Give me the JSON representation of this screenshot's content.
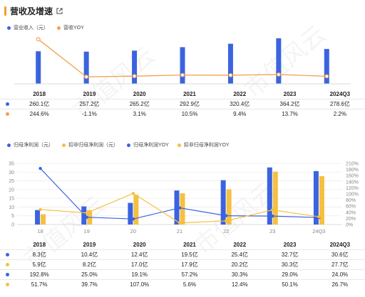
{
  "header": {
    "title": "营收及增速"
  },
  "colors": {
    "blue": "#3b63e0",
    "orange": "#f0a050",
    "yellow": "#f5c040",
    "accent": "#f0a020"
  },
  "watermark": "市值风云",
  "chart_data": [
    {
      "type": "bar",
      "categories": [
        "2018",
        "2019",
        "2020",
        "2021",
        "2022",
        "2023",
        "2024Q3"
      ],
      "series": [
        {
          "name": "营业收入（元）",
          "type": "bar",
          "values": [
            260.1,
            257.2,
            265.2,
            292.9,
            320.4,
            364.2,
            278.6
          ]
        },
        {
          "name": "营收YOY",
          "type": "line",
          "values": [
            244.6,
            -1.1,
            3.1,
            10.5,
            9.4,
            13.7,
            2.2
          ]
        }
      ],
      "table": {
        "header": [
          "2018",
          "2019",
          "2020",
          "2021",
          "2022",
          "2023",
          "2024Q3"
        ],
        "rows": [
          [
            "260.1亿",
            "257.2亿",
            "265.2亿",
            "292.9亿",
            "320.4亿",
            "364.2亿",
            "278.6亿"
          ],
          [
            "244.6%",
            "-1.1%",
            "3.1%",
            "10.5%",
            "9.4%",
            "13.7%",
            "2.2%"
          ]
        ]
      }
    },
    {
      "type": "bar",
      "categories": [
        "18",
        "19",
        "20",
        "21",
        "22",
        "23",
        "24Q3"
      ],
      "y_left": {
        "ticks": [
          "0",
          "5",
          "10",
          "15",
          "20",
          "25",
          "30",
          "35"
        ],
        "range": [
          0,
          35
        ]
      },
      "y_right": {
        "ticks": [
          "0%",
          "20%",
          "40%",
          "60%",
          "80%",
          "100%",
          "120%",
          "140%",
          "160%",
          "180%",
          "210%"
        ],
        "range": [
          0,
          210
        ]
      },
      "series": [
        {
          "name": "归母净利润（元）",
          "type": "bar",
          "values": [
            8.3,
            10.4,
            12.4,
            19.5,
            25.4,
            32.7,
            30.6
          ]
        },
        {
          "name": "扣非归母净利润（元）",
          "type": "bar",
          "values": [
            5.9,
            8.2,
            17.0,
            17.9,
            20.2,
            30.3,
            27.7
          ]
        },
        {
          "name": "归母净利润YOY",
          "type": "line",
          "values": [
            192.8,
            25.0,
            19.1,
            57.2,
            30.3,
            29.0,
            24.0
          ]
        },
        {
          "name": "扣非归母净利润YOY",
          "type": "line",
          "values": [
            51.7,
            39.7,
            107.0,
            5.6,
            12.4,
            50.1,
            26.7
          ]
        }
      ],
      "table": {
        "header": [
          "2018",
          "2019",
          "2020",
          "2021",
          "2022",
          "2023",
          "2024Q3"
        ],
        "rows": [
          [
            "8.3亿",
            "10.4亿",
            "12.4亿",
            "19.5亿",
            "25.4亿",
            "32.7亿",
            "30.6亿"
          ],
          [
            "5.9亿",
            "8.2亿",
            "17.0亿",
            "17.9亿",
            "20.2亿",
            "30.3亿",
            "27.7亿"
          ],
          [
            "192.8%",
            "25.0%",
            "19.1%",
            "57.2%",
            "30.3%",
            "29.0%",
            "24.0%"
          ],
          [
            "51.7%",
            "39.7%",
            "107.0%",
            "5.6%",
            "12.4%",
            "50.1%",
            "26.7%"
          ]
        ]
      }
    }
  ]
}
